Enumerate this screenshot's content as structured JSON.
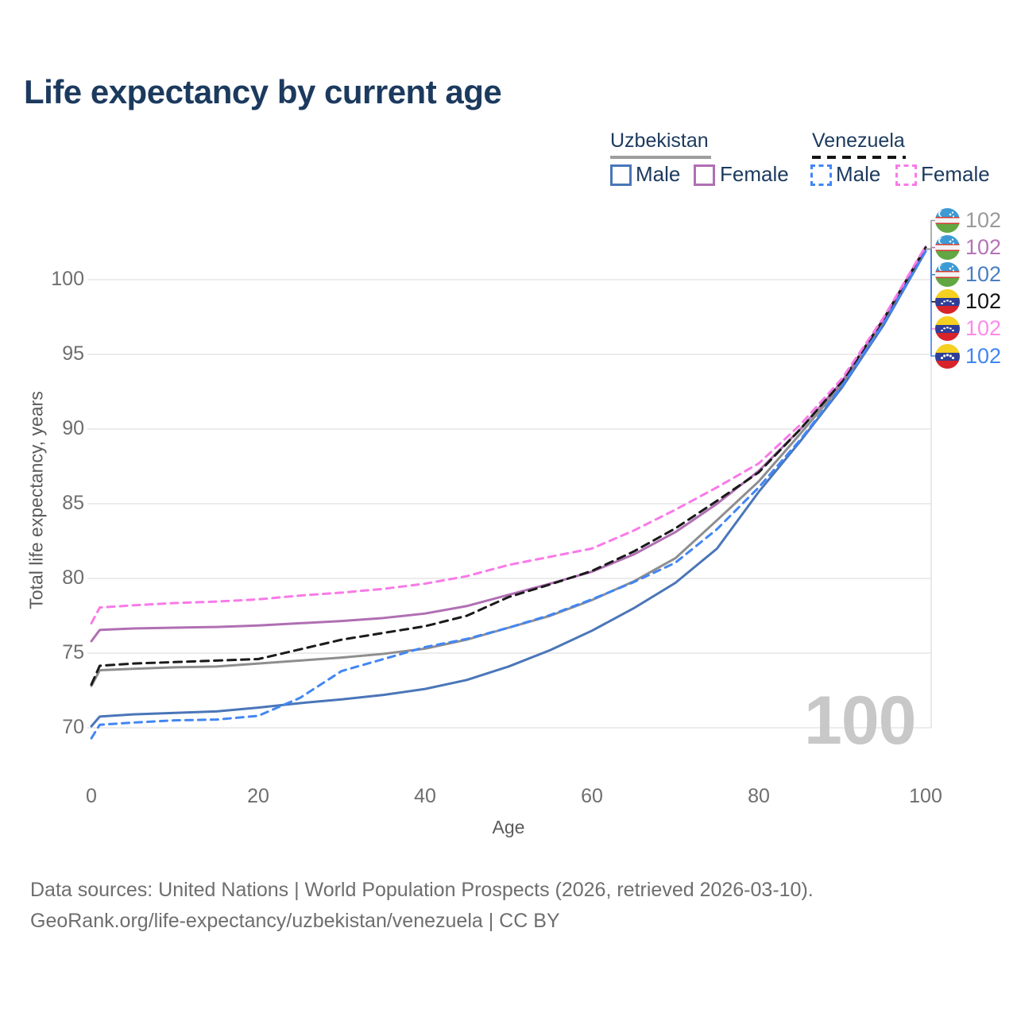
{
  "title": "Life expectancy by current age",
  "legend": {
    "uzbekistan": {
      "name": "Uzbekistan",
      "male": "Male",
      "female": "Female"
    },
    "venezuela": {
      "name": "Venezuela",
      "male": "Male",
      "female": "Female"
    }
  },
  "y_axis": {
    "title": "Total life expectancy, years",
    "ticks": [
      70,
      75,
      80,
      85,
      90,
      95,
      100
    ]
  },
  "x_axis": {
    "title": "Age",
    "ticks": [
      0,
      20,
      40,
      60,
      80,
      100
    ]
  },
  "watermark": {
    "text": "100"
  },
  "colors": {
    "uz_male": "#4a76b8",
    "uz_female": "#b06fb3",
    "uz_total": "#8e8e8e",
    "ve_male": "#4286f4",
    "ve_female": "#f87ae8",
    "ve_total": "#1a1a1a",
    "title_navy": "#1c3a5e",
    "watermark_gray": "#c8c8c8",
    "gridline": "#eaeaea"
  },
  "endpoints": [
    {
      "country": "Uzbekistan",
      "series": "Uzbekistan total",
      "value": "102",
      "color": "#9a9a9a"
    },
    {
      "country": "Uzbekistan",
      "series": "Uzbekistan female",
      "value": "102",
      "color": "#b573b5"
    },
    {
      "country": "Uzbekistan",
      "series": "Uzbekistan male",
      "value": "102",
      "color": "#4a7fc1"
    },
    {
      "country": "Venezuela",
      "series": "Venezuela total",
      "value": "102",
      "color": "#131313"
    },
    {
      "country": "Venezuela",
      "series": "Venezuela female",
      "value": "102",
      "color": "#fb8bec"
    },
    {
      "country": "Venezuela",
      "series": "Venezuela male",
      "value": "102",
      "color": "#4285f4"
    }
  ],
  "footer": {
    "line1": "Data sources: United Nations | World Population Prospects (2026, retrieved 2026-03-10).",
    "line2": "GeoRank.org/life-expectancy/uzbekistan/venezuela | CC BY"
  },
  "chart_data": {
    "type": "line",
    "title": "Life expectancy by current age",
    "xlabel": "Age",
    "ylabel": "Total life expectancy, years",
    "xlim": [
      0,
      100
    ],
    "ylim": [
      68.5,
      103
    ],
    "grid": "horizontal",
    "legend_position": "top-right",
    "x": [
      0,
      1,
      5,
      10,
      15,
      20,
      25,
      30,
      35,
      40,
      45,
      50,
      55,
      60,
      65,
      70,
      75,
      80,
      85,
      90,
      95,
      100
    ],
    "series": [
      {
        "name": "Uzbekistan total",
        "country": "Uzbekistan",
        "sex": "total",
        "color": "#8e8e8e",
        "dash": null,
        "values": [
          72.8,
          73.85,
          73.95,
          74.05,
          74.1,
          74.3,
          74.5,
          74.7,
          74.95,
          75.3,
          75.9,
          76.7,
          77.5,
          78.55,
          79.8,
          81.35,
          83.9,
          86.5,
          89.7,
          93.0,
          97.2,
          102.05
        ]
      },
      {
        "name": "Uzbekistan male",
        "country": "Uzbekistan",
        "sex": "male",
        "color": "#4a76b8",
        "dash": null,
        "values": [
          70.1,
          70.75,
          70.9,
          71.0,
          71.1,
          71.35,
          71.65,
          71.9,
          72.2,
          72.6,
          73.2,
          74.1,
          75.2,
          76.5,
          78.0,
          79.7,
          82.0,
          85.8,
          89.2,
          92.8,
          97.0,
          101.9
        ]
      },
      {
        "name": "Uzbekistan female",
        "country": "Uzbekistan",
        "sex": "female",
        "color": "#b06fb3",
        "dash": null,
        "values": [
          75.8,
          76.55,
          76.65,
          76.7,
          76.75,
          76.85,
          77.0,
          77.15,
          77.35,
          77.65,
          78.15,
          78.9,
          79.65,
          80.45,
          81.6,
          83.1,
          85.0,
          87.2,
          90.0,
          93.2,
          97.4,
          102.2
        ]
      },
      {
        "name": "Venezuela total",
        "country": "Venezuela",
        "sex": "total",
        "color": "#1a1a1a",
        "dash": "10 7",
        "values": [
          72.9,
          74.15,
          74.3,
          74.4,
          74.5,
          74.6,
          75.25,
          75.9,
          76.35,
          76.8,
          77.5,
          78.75,
          79.6,
          80.5,
          81.8,
          83.35,
          85.2,
          87.1,
          90.0,
          93.2,
          97.4,
          102.15
        ]
      },
      {
        "name": "Venezuela male",
        "country": "Venezuela",
        "sex": "male",
        "color": "#4286f4",
        "dash": "9 7",
        "values": [
          69.3,
          70.2,
          70.35,
          70.5,
          70.55,
          70.8,
          72.0,
          73.8,
          74.6,
          75.4,
          75.95,
          76.7,
          77.55,
          78.6,
          79.75,
          81.05,
          83.3,
          86.1,
          89.3,
          92.9,
          97.1,
          101.9
        ]
      },
      {
        "name": "Venezuela female",
        "country": "Venezuela",
        "sex": "female",
        "color": "#f87ae8",
        "dash": "9 7",
        "values": [
          77.0,
          78.05,
          78.2,
          78.35,
          78.45,
          78.6,
          78.85,
          79.05,
          79.3,
          79.65,
          80.15,
          80.9,
          81.45,
          82.0,
          83.2,
          84.6,
          86.1,
          87.7,
          90.3,
          93.4,
          97.5,
          102.25
        ]
      }
    ]
  }
}
